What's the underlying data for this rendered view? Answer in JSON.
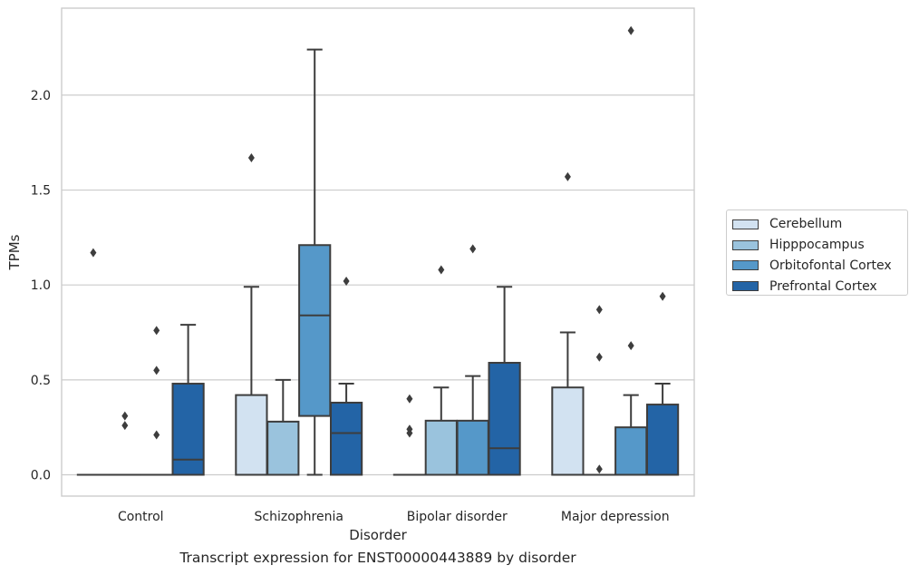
{
  "chart_data": {
    "type": "box",
    "xlabel": "Disorder",
    "ylabel": "TPMs",
    "caption": "Transcript expression for ENST00000443889 by disorder",
    "ylim": [
      -0.115,
      2.457
    ],
    "yticks": [
      0.0,
      0.5,
      1.0,
      1.5,
      2.0
    ],
    "ytick_labels": [
      "0.0",
      "0.5",
      "1.0",
      "1.5",
      "2.0"
    ],
    "grid": "horizontal",
    "legend_position": "right",
    "categories": [
      "Control",
      "Schizophrenia",
      "Bipolar disorder",
      "Major depression"
    ],
    "series": [
      {
        "name": "Cerebellum",
        "color": "#d2e2f1",
        "boxes": [
          {
            "min": 0.0,
            "q1": 0.0,
            "median": 0.0,
            "q3": 0.0,
            "max": 0.0,
            "outliers": [
              1.17
            ]
          },
          {
            "min": 0.0,
            "q1": 0.0,
            "median": 0.0,
            "q3": 0.42,
            "max": 0.99,
            "outliers": [
              1.67
            ]
          },
          {
            "min": 0.0,
            "q1": 0.0,
            "median": 0.0,
            "q3": 0.0,
            "max": 0.0,
            "outliers": [
              0.4,
              0.24,
              0.22
            ]
          },
          {
            "min": 0.0,
            "q1": 0.0,
            "median": 0.0,
            "q3": 0.46,
            "max": 0.75,
            "outliers": [
              1.57
            ]
          }
        ]
      },
      {
        "name": "Hipppocampus",
        "color": "#9ac3dd",
        "boxes": [
          {
            "min": 0.0,
            "q1": 0.0,
            "median": 0.0,
            "q3": 0.0,
            "max": 0.0,
            "outliers": [
              0.31,
              0.26
            ]
          },
          {
            "min": 0.0,
            "q1": 0.0,
            "median": 0.0,
            "q3": 0.28,
            "max": 0.5,
            "outliers": []
          },
          {
            "min": 0.0,
            "q1": 0.0,
            "median": 0.0,
            "q3": 0.285,
            "max": 0.46,
            "outliers": [
              1.08
            ]
          },
          {
            "min": 0.0,
            "q1": 0.0,
            "median": 0.0,
            "q3": 0.0,
            "max": 0.0,
            "outliers": [
              0.87,
              0.62,
              0.03
            ]
          }
        ]
      },
      {
        "name": "Orbitofontal Cortex",
        "color": "#5598c9",
        "boxes": [
          {
            "min": 0.0,
            "q1": 0.0,
            "median": 0.0,
            "q3": 0.0,
            "max": 0.0,
            "outliers": [
              0.76,
              0.55,
              0.21
            ]
          },
          {
            "min": 0.0,
            "q1": 0.31,
            "median": 0.84,
            "q3": 1.21,
            "max": 2.24,
            "outliers": []
          },
          {
            "min": 0.0,
            "q1": 0.0,
            "median": 0.0,
            "q3": 0.285,
            "max": 0.52,
            "outliers": [
              1.19
            ]
          },
          {
            "min": 0.0,
            "q1": 0.0,
            "median": 0.0,
            "q3": 0.25,
            "max": 0.42,
            "outliers": [
              2.34,
              0.68
            ]
          }
        ]
      },
      {
        "name": "Prefrontal Cortex",
        "color": "#2364a6",
        "boxes": [
          {
            "min": 0.0,
            "q1": 0.0,
            "median": 0.08,
            "q3": 0.48,
            "max": 0.79,
            "outliers": []
          },
          {
            "min": 0.0,
            "q1": 0.0,
            "median": 0.22,
            "q3": 0.38,
            "max": 0.48,
            "outliers": [
              1.02
            ]
          },
          {
            "min": 0.0,
            "q1": 0.0,
            "median": 0.14,
            "q3": 0.59,
            "max": 0.99,
            "outliers": []
          },
          {
            "min": 0.0,
            "q1": 0.0,
            "median": 0.0,
            "q3": 0.37,
            "max": 0.48,
            "outliers": [
              0.94
            ]
          }
        ]
      }
    ]
  }
}
